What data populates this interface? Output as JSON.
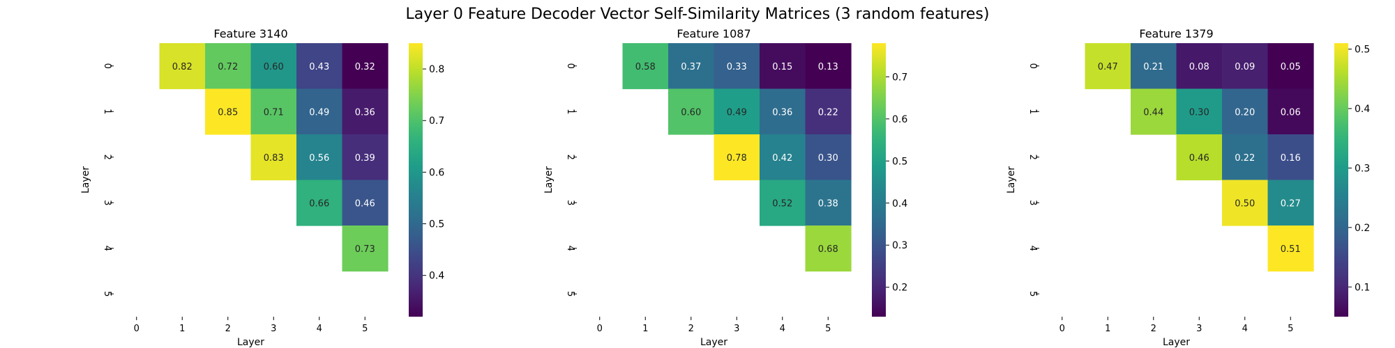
{
  "chart_data": {
    "type": "heatmap",
    "suptitle": "Layer 0 Feature Decoder Vector Self-Similarity Matrices (3 random features)",
    "colormap": "viridis",
    "panels": [
      {
        "title": "Feature 3140",
        "xlabel": "Layer",
        "ylabel": "Layer",
        "x_categories": [
          "0",
          "1",
          "2",
          "3",
          "4",
          "5"
        ],
        "y_categories": [
          "0",
          "1",
          "2",
          "3",
          "4",
          "5"
        ],
        "values": [
          [
            null,
            0.82,
            0.72,
            0.6,
            0.43,
            0.32
          ],
          [
            null,
            null,
            0.85,
            0.71,
            0.49,
            0.36
          ],
          [
            null,
            null,
            null,
            0.83,
            0.56,
            0.39
          ],
          [
            null,
            null,
            null,
            null,
            0.66,
            0.46
          ],
          [
            null,
            null,
            null,
            null,
            null,
            0.73
          ],
          [
            null,
            null,
            null,
            null,
            null,
            null
          ]
        ],
        "colorbar_ticks": [
          0.4,
          0.5,
          0.6,
          0.7,
          0.8
        ]
      },
      {
        "title": "Feature 1087",
        "xlabel": "Layer",
        "ylabel": "Layer",
        "x_categories": [
          "0",
          "1",
          "2",
          "3",
          "4",
          "5"
        ],
        "y_categories": [
          "0",
          "1",
          "2",
          "3",
          "4",
          "5"
        ],
        "values": [
          [
            null,
            0.58,
            0.37,
            0.33,
            0.15,
            0.13
          ],
          [
            null,
            null,
            0.6,
            0.49,
            0.36,
            0.22
          ],
          [
            null,
            null,
            null,
            0.78,
            0.42,
            0.3
          ],
          [
            null,
            null,
            null,
            null,
            0.52,
            0.38
          ],
          [
            null,
            null,
            null,
            null,
            null,
            0.68
          ],
          [
            null,
            null,
            null,
            null,
            null,
            null
          ]
        ],
        "colorbar_ticks": [
          0.2,
          0.3,
          0.4,
          0.5,
          0.6,
          0.7
        ]
      },
      {
        "title": "Feature 1379",
        "xlabel": "Layer",
        "ylabel": "Layer",
        "x_categories": [
          "0",
          "1",
          "2",
          "3",
          "4",
          "5"
        ],
        "y_categories": [
          "0",
          "1",
          "2",
          "3",
          "4",
          "5"
        ],
        "values": [
          [
            null,
            0.47,
            0.21,
            0.08,
            0.09,
            0.05
          ],
          [
            null,
            null,
            0.44,
            0.3,
            0.2,
            0.06
          ],
          [
            null,
            null,
            null,
            0.46,
            0.22,
            0.16
          ],
          [
            null,
            null,
            null,
            null,
            0.5,
            0.27
          ],
          [
            null,
            null,
            null,
            null,
            null,
            0.51
          ],
          [
            null,
            null,
            null,
            null,
            null,
            null
          ]
        ],
        "colorbar_ticks": [
          0.1,
          0.2,
          0.3,
          0.4,
          0.5
        ]
      }
    ]
  }
}
